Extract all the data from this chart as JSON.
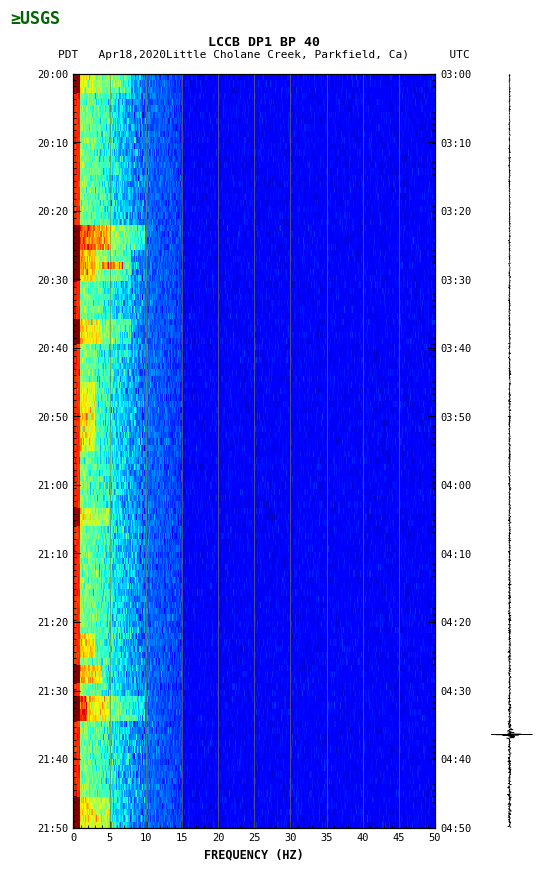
{
  "title_line1": "LCCB DP1 BP 40",
  "title_line2": "PDT   Apr18,2020Little Cholane Creek, Parkfield, Ca)      UTC",
  "left_ytick_labels": [
    "20:00",
    "20:10",
    "20:20",
    "20:30",
    "20:40",
    "20:50",
    "21:00",
    "21:10",
    "21:20",
    "21:30",
    "21:40",
    "21:50"
  ],
  "right_ytick_labels": [
    "03:00",
    "03:10",
    "03:20",
    "03:30",
    "03:40",
    "03:50",
    "04:00",
    "04:10",
    "04:20",
    "04:30",
    "04:40",
    "04:50"
  ],
  "xlabel": "FREQUENCY (HZ)",
  "xmin": 0,
  "xmax": 50,
  "xticks": [
    0,
    5,
    10,
    15,
    20,
    25,
    30,
    35,
    40,
    45,
    50
  ],
  "n_time": 120,
  "n_freq": 500,
  "freq_max": 50,
  "background_color": "#ffffff",
  "fig_width": 5.52,
  "fig_height": 8.92,
  "grid_color": "#808040",
  "grid_alpha": 0.7
}
